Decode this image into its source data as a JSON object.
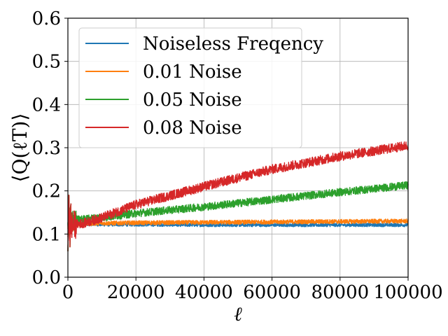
{
  "chart_data": {
    "type": "line",
    "title": "",
    "xlabel": "ℓ",
    "ylabel": "⟨Q(ℓT)⟩",
    "xlim": [
      0,
      100000
    ],
    "ylim": [
      0.0,
      0.6
    ],
    "grid": true,
    "legend_position": "top-left",
    "x_ticks": [
      0,
      20000,
      40000,
      60000,
      80000,
      100000
    ],
    "x_tick_labels": [
      "0",
      "20000",
      "40000",
      "60000",
      "80000",
      "100000"
    ],
    "y_ticks": [
      0.0,
      0.1,
      0.2,
      0.3,
      0.4,
      0.5,
      0.6
    ],
    "y_tick_labels": [
      "0.0",
      "0.1",
      "0.2",
      "0.3",
      "0.4",
      "0.5",
      "0.6"
    ],
    "series": [
      {
        "name": "Noiseless Freqency",
        "color": "#1f77b4",
        "x": [
          0,
          500,
          1000,
          2000,
          5000,
          10000,
          20000,
          40000,
          60000,
          80000,
          100000
        ],
        "y": [
          0.12,
          0.1,
          0.125,
          0.125,
          0.123,
          0.122,
          0.122,
          0.121,
          0.121,
          0.121,
          0.121
        ],
        "noise_band": 0.004
      },
      {
        "name": "0.01 Noise",
        "color": "#ff7f0e",
        "x": [
          0,
          500,
          1000,
          2000,
          5000,
          10000,
          20000,
          40000,
          60000,
          80000,
          100000
        ],
        "y": [
          0.12,
          0.11,
          0.12,
          0.122,
          0.124,
          0.125,
          0.126,
          0.127,
          0.128,
          0.129,
          0.13
        ],
        "noise_band": 0.005
      },
      {
        "name": "0.05 Noise",
        "color": "#2ca02c",
        "x": [
          0,
          500,
          1000,
          2000,
          5000,
          10000,
          20000,
          40000,
          60000,
          80000,
          100000
        ],
        "y": [
          0.13,
          0.12,
          0.13,
          0.133,
          0.135,
          0.138,
          0.148,
          0.163,
          0.18,
          0.197,
          0.213
        ],
        "noise_band": 0.009
      },
      {
        "name": "0.08 Noise",
        "color": "#d62728",
        "x": [
          0,
          500,
          1000,
          2000,
          5000,
          10000,
          20000,
          40000,
          60000,
          80000,
          100000
        ],
        "y": [
          0.12,
          0.11,
          0.12,
          0.122,
          0.126,
          0.138,
          0.168,
          0.21,
          0.25,
          0.28,
          0.305
        ],
        "noise_band": 0.011
      }
    ]
  }
}
